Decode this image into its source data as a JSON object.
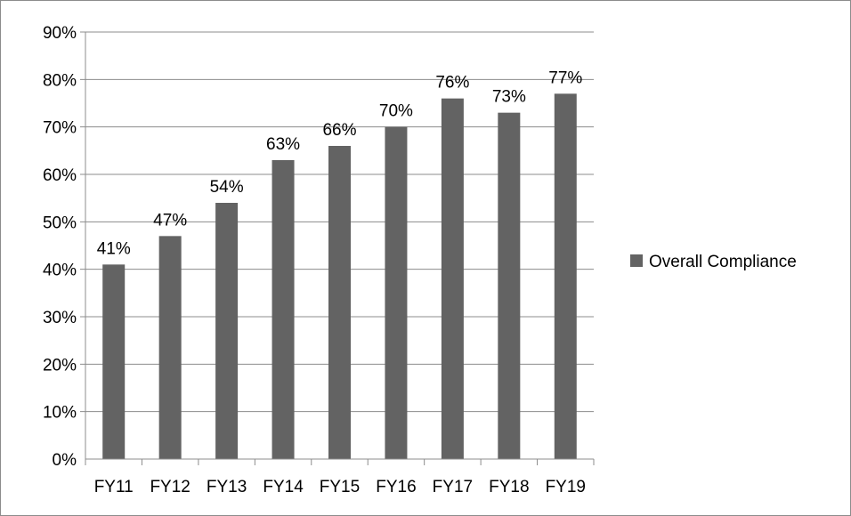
{
  "chart_data": {
    "type": "bar",
    "categories": [
      "FY11",
      "FY12",
      "FY13",
      "FY14",
      "FY15",
      "FY16",
      "FY17",
      "FY18",
      "FY19"
    ],
    "series": [
      {
        "name": "Overall Compliance",
        "values": [
          41,
          47,
          54,
          63,
          66,
          70,
          76,
          73,
          77
        ],
        "labels": [
          "41%",
          "47%",
          "54%",
          "63%",
          "66%",
          "70%",
          "76%",
          "73%",
          "77%"
        ],
        "color": "#636363"
      }
    ],
    "y_ticks": [
      0,
      10,
      20,
      30,
      40,
      50,
      60,
      70,
      80,
      90
    ],
    "y_tick_labels": [
      "0%",
      "10%",
      "20%",
      "30%",
      "40%",
      "50%",
      "60%",
      "70%",
      "80%",
      "90%"
    ],
    "ylim": [
      0,
      90
    ],
    "grid": true,
    "gridline_color": "#8c8c8c",
    "legend_position": "right",
    "title": "",
    "xlabel": "",
    "ylabel": ""
  }
}
